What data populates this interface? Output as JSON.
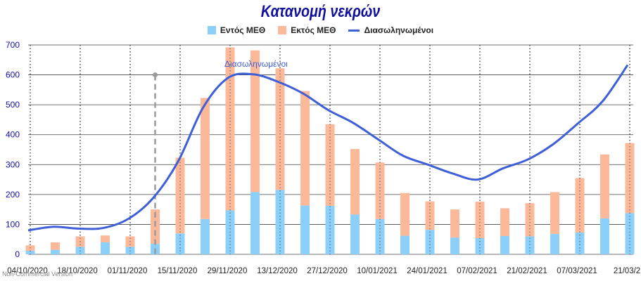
{
  "chart_data": {
    "type": "bar",
    "title": "Κατανομή νεκρών",
    "colors": {
      "inside_icu": "#8ccff8",
      "outside_icu": "#fbb99a",
      "intubated": "#3f5fd6",
      "axis": "#1010b0",
      "title": "#10109a"
    },
    "legend": {
      "placement": "top",
      "items": [
        {
          "label": "Εντός ΜΕΘ",
          "kind": "box",
          "color": "#8ccff8"
        },
        {
          "label": "Εκτός ΜΕΘ",
          "kind": "box",
          "color": "#fbb99a"
        },
        {
          "label": "Διασωληνωμένοι",
          "kind": "line",
          "color": "#3f5fd6"
        }
      ]
    },
    "ylim": [
      0,
      700
    ],
    "yticks": [
      0,
      100,
      200,
      300,
      400,
      500,
      600,
      700
    ],
    "xtick_labels": [
      "04/10/2020",
      "18/10/2020",
      "01/11/2020",
      "15/11/2020",
      "29/11/2020",
      "13/12/2020",
      "27/12/2020",
      "10/01/2021",
      "24/01/2021",
      "07/02/2021",
      "21/02/2021",
      "07/03/2021",
      "21/03/2"
    ],
    "series": [
      {
        "name": "Εντός ΜΕΘ",
        "type": "bar",
        "stack": "total",
        "values": [
          12,
          15,
          25,
          40,
          25,
          35,
          70,
          118,
          147,
          208,
          215,
          163,
          162,
          133,
          118,
          62,
          82,
          56,
          54,
          61,
          60,
          68,
          73,
          120,
          138
        ]
      },
      {
        "name": "Εκτός ΜΕΘ",
        "type": "bar",
        "stack": "total",
        "values": [
          18,
          25,
          35,
          23,
          35,
          115,
          253,
          405,
          545,
          474,
          407,
          383,
          273,
          219,
          189,
          143,
          95,
          94,
          122,
          93,
          111,
          140,
          182,
          214,
          234
        ]
      },
      {
        "name": "Διασωληνωμένοι",
        "type": "line",
        "values": [
          80,
          92,
          86,
          88,
          118,
          188,
          310,
          490,
          590,
          602,
          577,
          538,
          483,
          440,
          385,
          330,
          300,
          270,
          250,
          287,
          317,
          367,
          437,
          512,
          633
        ]
      }
    ],
    "annotation": {
      "text": "Διασωληνωμένοι",
      "at_index": 8,
      "value": 608
    },
    "marker": {
      "at_index": 5,
      "value": 600
    }
  },
  "watermark": "Non-Commercial Version"
}
